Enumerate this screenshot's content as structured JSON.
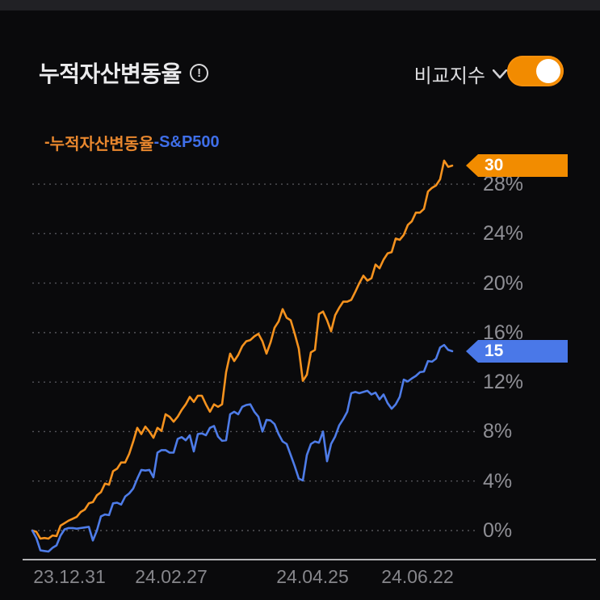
{
  "header": {
    "title": "누적자산변동율",
    "info_glyph": "!",
    "compare_label": "비교지수",
    "toggle_on": true
  },
  "legend": [
    {
      "marker": "-",
      "label": "누적자산변동율",
      "color": "#e8872e"
    },
    {
      "marker": "-",
      "label": "S&P500",
      "color": "#3f6ee8"
    }
  ],
  "colors": {
    "background": "#0a0a0c",
    "top_strip": "#212125",
    "grid": "#54545a",
    "axis": "#b2b2b5",
    "y_label": "#8f8f95",
    "x_label": "#86868b",
    "orange_line": "#f5921e",
    "orange_badge": "#f28c00",
    "blue_line": "#4e7ce8",
    "blue_badge": "#4a78e8"
  },
  "chart_data": {
    "type": "line",
    "title": "누적자산변동율",
    "xlabel": "",
    "ylabel": "",
    "y_unit": "%",
    "ylim": [
      -2.5,
      31
    ],
    "grid": "horizontal-dashed",
    "legend_position": "top-left",
    "y_ticks": [
      {
        "value": 28,
        "label": "28%"
      },
      {
        "value": 24,
        "label": "24%"
      },
      {
        "value": 20,
        "label": "20%"
      },
      {
        "value": 16,
        "label": "16%"
      },
      {
        "value": 12,
        "label": "12%"
      },
      {
        "value": 8,
        "label": "8%"
      },
      {
        "value": 4,
        "label": "4%"
      },
      {
        "value": 0,
        "label": "0%"
      }
    ],
    "x_ticks": [
      "23.12.31",
      "24.02.27",
      "24.04.25",
      "24.06.22"
    ],
    "series": [
      {
        "name": "누적자산변동율",
        "color": "#f5921e",
        "badge_color": "#f28c00",
        "end_label": "30",
        "values": [
          0,
          -0.1,
          -0.65,
          -0.6,
          -0.65,
          -0.4,
          -0.45,
          0.4,
          0.6,
          0.8,
          0.95,
          1.1,
          1.5,
          1.7,
          2.2,
          2.3,
          2.85,
          3.1,
          3.8,
          3.7,
          4.8,
          5,
          5.5,
          5.5,
          6.2,
          7.2,
          8.3,
          7.8,
          8.4,
          8,
          7.5,
          8.3,
          8.05,
          9.4,
          9.2,
          8.8,
          9.2,
          9.75,
          10.2,
          10.8,
          10.4,
          10.9,
          10.9,
          10.2,
          9.6,
          10.2,
          10,
          10.2,
          12.8,
          14.3,
          13.7,
          14.2,
          14.9,
          15.3,
          15.4,
          15.7,
          15.9,
          15.3,
          14.3,
          15.2,
          16.4,
          16.9,
          17.9,
          17.2,
          17,
          15.9,
          14.7,
          12.1,
          12.6,
          14.4,
          14.6,
          17.5,
          17.7,
          17,
          16.1,
          17.4,
          18,
          18.5,
          18.5,
          18.65,
          19.3,
          20,
          20.6,
          20.2,
          20.4,
          21.5,
          21.2,
          21.9,
          22.4,
          22.5,
          23.6,
          23.5,
          23.9,
          24.7,
          25,
          25.7,
          25.7,
          26,
          27.4,
          27.7,
          27.9,
          28.4,
          29.9,
          29.4,
          29.5
        ]
      },
      {
        "name": "S&P500",
        "color": "#4e7ce8",
        "badge_color": "#4a78e8",
        "end_label": "15",
        "values": [
          0,
          -0.6,
          -1.6,
          -1.65,
          -1.7,
          -1.4,
          -1.2,
          -0.4,
          0.1,
          0.2,
          0.2,
          0.15,
          0.2,
          0.25,
          0.3,
          -0.8,
          0,
          1.15,
          1.3,
          1.25,
          2.2,
          2.25,
          2.1,
          2.75,
          3,
          3.4,
          4.2,
          4.9,
          4.85,
          4.9,
          4.3,
          6.3,
          6.5,
          6.5,
          6.3,
          6.3,
          7.4,
          7.55,
          7.3,
          7.7,
          6.4,
          7.8,
          7.85,
          7.7,
          8.3,
          8.45,
          7.6,
          7.25,
          7.3,
          9.4,
          9.6,
          9.4,
          10,
          10.15,
          10.2,
          9.6,
          9.2,
          8,
          8.95,
          8.9,
          8.6,
          7.8,
          7.2,
          7,
          6.1,
          5.2,
          4.2,
          4.05,
          6.1,
          7,
          7.2,
          7.1,
          8,
          5.6,
          7,
          7.6,
          8.5,
          9,
          9.6,
          11.1,
          11.2,
          11.1,
          11.2,
          11.3,
          11,
          11.15,
          10.6,
          11,
          10.3,
          9.85,
          10.2,
          10.8,
          12.2,
          12.05,
          12.3,
          12.5,
          12.8,
          12.85,
          13.7,
          13.65,
          13.9,
          14.8,
          15,
          14.6,
          14.5
        ]
      }
    ]
  }
}
